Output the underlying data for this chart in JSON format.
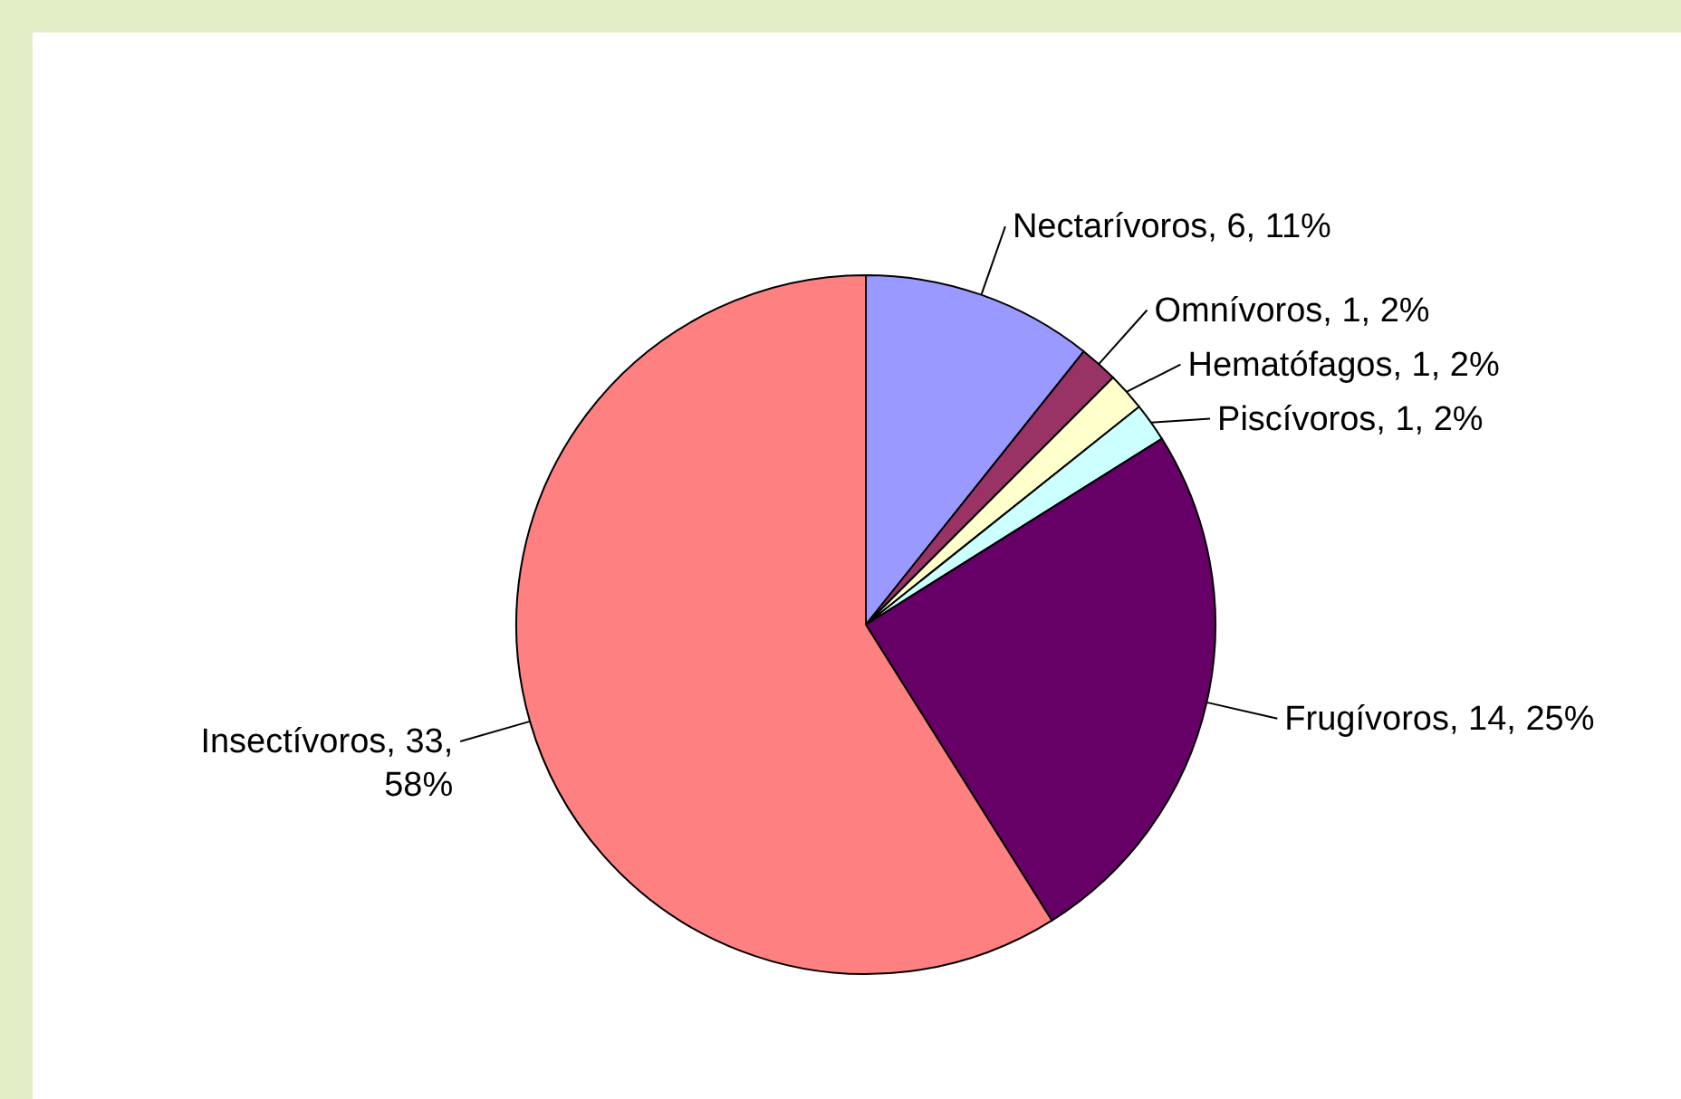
{
  "chart_data": {
    "type": "pie",
    "categories": [
      "Nectarívoros",
      "Omnívoros",
      "Hematófagos",
      "Piscívoros",
      "Frugívoros",
      "Insectívoros"
    ],
    "values": [
      6,
      1,
      1,
      1,
      14,
      33
    ],
    "colors": [
      "#9999ff",
      "#993366",
      "#ffffcc",
      "#ccffff",
      "#660066",
      "#ff8080"
    ],
    "value_labels": [
      "6, 11%",
      "1, 2%",
      "1, 2%",
      "1, 2%",
      "14, 25%",
      "33, 58%"
    ]
  }
}
